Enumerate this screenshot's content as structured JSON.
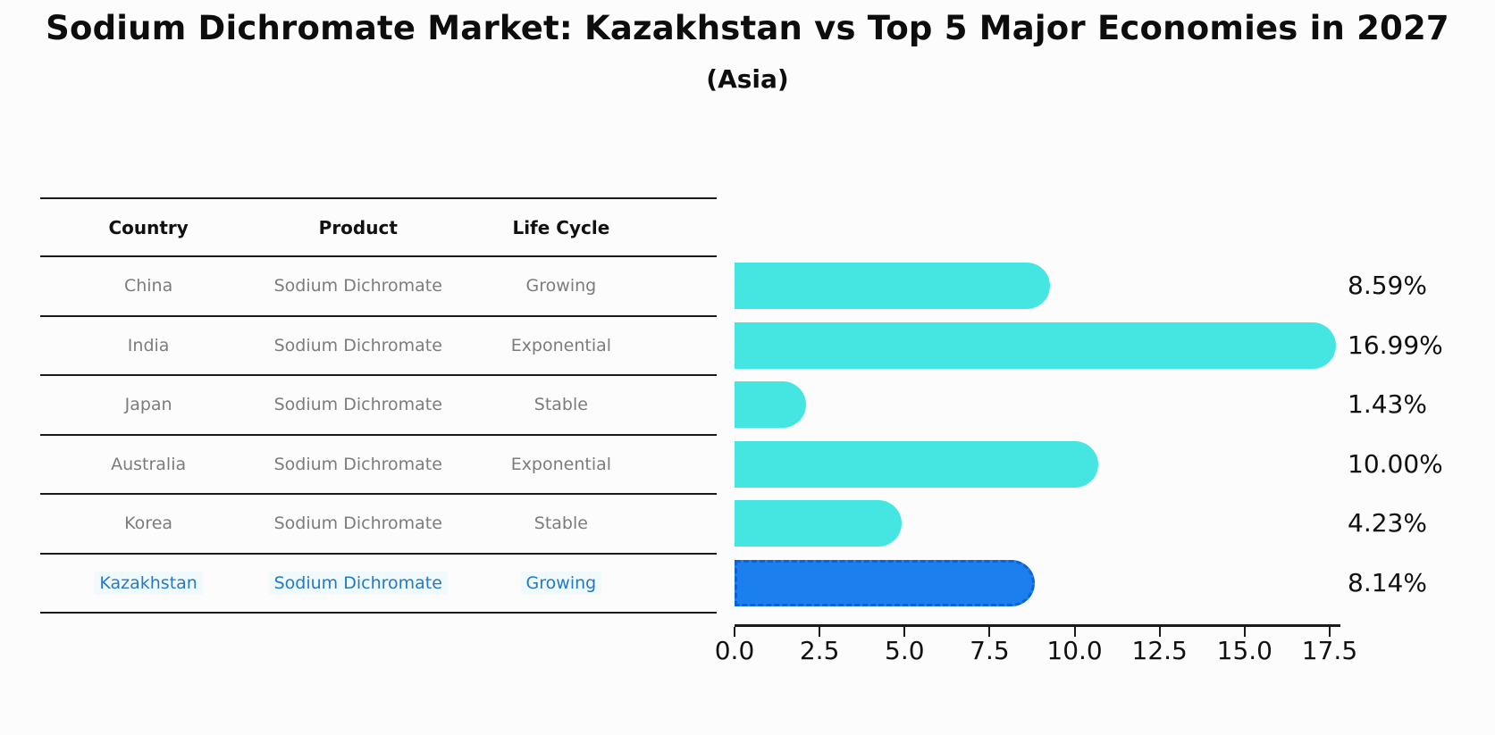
{
  "title": "Sodium Dichromate Market: Kazakhstan vs Top 5 Major Economies in 2027",
  "subtitle": "(Asia)",
  "table": {
    "headers": [
      "Country",
      "Product",
      "Life Cycle"
    ]
  },
  "chart_data": {
    "type": "bar",
    "orientation": "horizontal",
    "title": "Sodium Dichromate Market: Kazakhstan vs Top 5 Major Economies in 2027 (Asia)",
    "xlabel": "",
    "ylabel": "",
    "xlim": [
      0,
      17.5
    ],
    "x_ticks": [
      "0.0",
      "2.5",
      "5.0",
      "7.5",
      "10.0",
      "12.5",
      "15.0",
      "17.5"
    ],
    "grid": false,
    "legend": false,
    "rows": [
      {
        "country": "China",
        "product": "Sodium Dichromate",
        "life_cycle": "Growing",
        "value": 8.59,
        "value_label": "8.59%",
        "highlight": false
      },
      {
        "country": "India",
        "product": "Sodium Dichromate",
        "life_cycle": "Exponential",
        "value": 16.99,
        "value_label": "16.99%",
        "highlight": false
      },
      {
        "country": "Japan",
        "product": "Sodium Dichromate",
        "life_cycle": "Stable",
        "value": 1.43,
        "value_label": "1.43%",
        "highlight": false
      },
      {
        "country": "Australia",
        "product": "Sodium Dichromate",
        "life_cycle": "Exponential",
        "value": 10.0,
        "value_label": "10.00%",
        "highlight": false
      },
      {
        "country": "Korea",
        "product": "Sodium Dichromate",
        "life_cycle": "Stable",
        "value": 4.23,
        "value_label": "4.23%",
        "highlight": false
      },
      {
        "country": "Kazakhstan",
        "product": "Sodium Dichromate",
        "life_cycle": "Growing",
        "value": 8.14,
        "value_label": "8.14%",
        "highlight": true
      }
    ],
    "colors": {
      "bar": "#45e6e2",
      "highlight_bar": "#1b7fee",
      "highlight_bar_border": "#0d62d6",
      "highlight_text": "#2479c6",
      "row_text": "#7c7c7c",
      "header_text": "#111111",
      "axis": "#1a1a1a"
    }
  }
}
